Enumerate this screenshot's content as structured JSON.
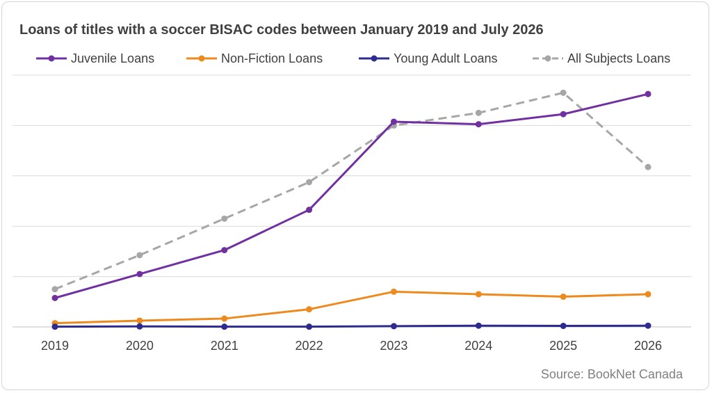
{
  "chart_data": {
    "type": "line",
    "title": "Loans of titles with a soccer BISAC codes between January 2019 and July 2026",
    "xlabel": "",
    "ylabel": "",
    "categories": [
      "2019",
      "2020",
      "2021",
      "2022",
      "2023",
      "2024",
      "2025",
      "2026"
    ],
    "ylim": [
      0,
      100
    ],
    "grid": true,
    "legend_position": "top",
    "series": [
      {
        "name": "Juvenile Loans",
        "color": "#7030a0",
        "dashed": false,
        "values": [
          11.5,
          21,
          30.5,
          46.5,
          81.5,
          80.5,
          84.5,
          92.5
        ]
      },
      {
        "name": "Non-Fiction Loans",
        "color": "#ed8a1e",
        "dashed": false,
        "values": [
          1.5,
          2.5,
          3.3,
          7,
          14,
          13,
          12,
          13
        ]
      },
      {
        "name": "Young Adult Loans",
        "color": "#2e2b8f",
        "dashed": false,
        "values": [
          0.1,
          0.2,
          0.1,
          0.1,
          0.3,
          0.5,
          0.4,
          0.5
        ]
      },
      {
        "name": "All Subjects Loans",
        "color": "#a6a6a6",
        "dashed": true,
        "values": [
          15,
          28.5,
          43,
          57.5,
          80,
          85,
          93,
          63.5
        ]
      }
    ]
  },
  "source": "Source: BookNet Canada"
}
